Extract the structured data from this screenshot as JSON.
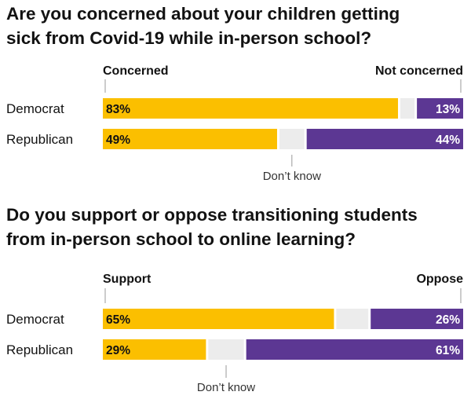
{
  "colors": {
    "yes": "#fbbf00",
    "dont_know": "#ececec",
    "no": "#5c3793",
    "text": "#121212",
    "note": "#333333",
    "tick": "#999999"
  },
  "chart_data": [
    {
      "type": "bar",
      "stacked": true,
      "orientation": "horizontal",
      "title_lines": [
        "Are you concerned about your children getting",
        "sick from Covid-19 while in-person school?"
      ],
      "categories": [
        "Democrat",
        "Republican"
      ],
      "series": [
        {
          "name": "Concerned",
          "values": [
            83,
            49
          ]
        },
        {
          "name": "Don’t know",
          "values": [
            4,
            7
          ]
        },
        {
          "name": "Not concerned",
          "values": [
            13,
            44
          ]
        }
      ],
      "left_label": "Concerned",
      "right_label": "Not concerned",
      "note_label": "Don’t know",
      "data_labels": [
        [
          "83%",
          "13%"
        ],
        [
          "49%",
          "44%"
        ]
      ],
      "xlim": [
        0,
        100
      ]
    },
    {
      "type": "bar",
      "stacked": true,
      "orientation": "horizontal",
      "title_lines": [
        "Do you support or oppose transitioning students",
        "from in-person school to online learning?"
      ],
      "categories": [
        "Democrat",
        "Republican"
      ],
      "series": [
        {
          "name": "Support",
          "values": [
            65,
            29
          ]
        },
        {
          "name": "Don’t know",
          "values": [
            9,
            10
          ]
        },
        {
          "name": "Oppose",
          "values": [
            26,
            61
          ]
        }
      ],
      "left_label": "Support",
      "right_label": "Oppose",
      "note_label": "Don’t know",
      "data_labels": [
        [
          "65%",
          "26%"
        ],
        [
          "29%",
          "61%"
        ]
      ],
      "xlim": [
        0,
        100
      ]
    }
  ]
}
